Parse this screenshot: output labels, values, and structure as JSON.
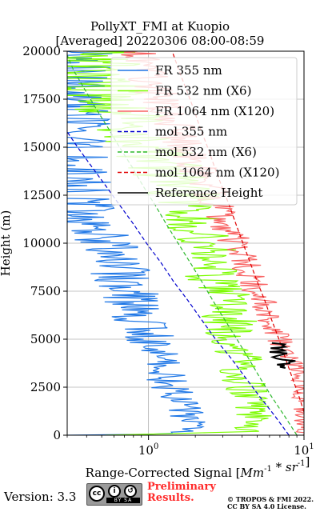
{
  "figure": {
    "title_line1": "PollyXT_FMI at Kuopio",
    "title_line2": "[Averaged] 20220306 08:00-08:59",
    "version": "Version: 3.3",
    "preliminary_line1": "Preliminary",
    "preliminary_line2": "Results.",
    "copyright_line1": "© TROPOS & FMI 2022.",
    "copyright_line2": "CC BY SA 4.0 License.",
    "cc_badge_text": "BY SA"
  },
  "chart_data": {
    "type": "line",
    "xscale": "log",
    "xlim": [
      0.3,
      10
    ],
    "ylim": [
      0,
      20000
    ],
    "xlabel": "Range-Corrected Signal [Mm^-1 * sr^-1]",
    "ylabel": "Height (m)",
    "x_major_ticks": [
      1,
      10
    ],
    "x_tick_labels": [
      "10^0",
      "10^1"
    ],
    "y_ticks": [
      0,
      2500,
      5000,
      7500,
      10000,
      12500,
      15000,
      17500,
      20000
    ],
    "y_tick_labels": [
      "0",
      "2500",
      "5000",
      "7500",
      "10000",
      "12500",
      "15000",
      "17500",
      "20000"
    ],
    "grid": true,
    "legend_position": "top-right",
    "series": [
      {
        "name": "FR 355 nm",
        "color": "#1f77e6",
        "style": "solid",
        "noise": 0.12,
        "points": [
          [
            0.4,
            0
          ],
          [
            1.6,
            100
          ],
          [
            2.0,
            500
          ],
          [
            1.8,
            1000
          ],
          [
            1.5,
            2000
          ],
          [
            1.3,
            3000
          ],
          [
            1.15,
            4000
          ],
          [
            1.0,
            5000
          ],
          [
            0.9,
            6000
          ],
          [
            0.8,
            7000
          ],
          [
            0.7,
            8000
          ],
          [
            0.6,
            9000
          ],
          [
            0.5,
            10000
          ],
          [
            0.43,
            11000
          ],
          [
            0.37,
            12000
          ],
          [
            0.33,
            13000
          ],
          [
            0.3,
            14000
          ],
          [
            0.3,
            20000
          ]
        ]
      },
      {
        "name": "FR 532 nm (X6)",
        "color": "#7cfc00",
        "style": "solid",
        "noise": 0.12,
        "points": [
          [
            0.5,
            0
          ],
          [
            4.5,
            200
          ],
          [
            5.0,
            700
          ],
          [
            4.6,
            1500
          ],
          [
            4.2,
            2500
          ],
          [
            3.8,
            4000
          ],
          [
            3.3,
            6000
          ],
          [
            2.9,
            7500
          ],
          [
            2.5,
            9000
          ],
          [
            2.2,
            10500
          ],
          [
            1.8,
            12000
          ],
          [
            1.4,
            13500
          ],
          [
            1.0,
            15000
          ],
          [
            0.7,
            16500
          ],
          [
            0.5,
            18000
          ],
          [
            0.4,
            20000
          ]
        ]
      },
      {
        "name": "FR 1064 nm (X120)",
        "color": "#f86464",
        "style": "solid",
        "noise": 0.06,
        "points": [
          [
            10,
            0
          ],
          [
            10,
            1000
          ],
          [
            9.8,
            2500
          ],
          [
            8.5,
            3500
          ],
          [
            7.5,
            4500
          ],
          [
            6.5,
            5500
          ],
          [
            5.8,
            6500
          ],
          [
            5.0,
            7500
          ],
          [
            4.4,
            8500
          ],
          [
            3.9,
            9500
          ],
          [
            3.4,
            10500
          ],
          [
            3.0,
            11500
          ],
          [
            2.6,
            12500
          ],
          [
            2.2,
            13500
          ],
          [
            1.9,
            14500
          ],
          [
            1.6,
            15500
          ],
          [
            1.4,
            16500
          ],
          [
            1.2,
            17500
          ],
          [
            1.0,
            18500
          ],
          [
            0.9,
            19500
          ],
          [
            0.85,
            20000
          ]
        ]
      },
      {
        "name": "mol 355 nm",
        "color": "#0000cd",
        "style": "dashed",
        "noise": 0,
        "points": [
          [
            8.0,
            0
          ],
          [
            6.5,
            1000
          ],
          [
            5.2,
            2000
          ],
          [
            4.2,
            3000
          ],
          [
            3.4,
            4000
          ],
          [
            2.7,
            5000
          ],
          [
            2.2,
            6000
          ],
          [
            1.8,
            7000
          ],
          [
            1.45,
            8000
          ],
          [
            1.2,
            9000
          ],
          [
            0.97,
            10000
          ],
          [
            0.8,
            11000
          ],
          [
            0.65,
            12000
          ],
          [
            0.53,
            13000
          ],
          [
            0.43,
            14000
          ],
          [
            0.35,
            15000
          ],
          [
            0.3,
            15800
          ]
        ]
      },
      {
        "name": "mol 532 nm (X6)",
        "color": "#2eb82e",
        "style": "dashed",
        "noise": 0,
        "points": [
          [
            9.0,
            0
          ],
          [
            7.5,
            1000
          ],
          [
            6.2,
            2000
          ],
          [
            5.2,
            3000
          ],
          [
            4.4,
            4000
          ],
          [
            3.7,
            5000
          ],
          [
            3.1,
            6000
          ],
          [
            2.6,
            7000
          ],
          [
            2.2,
            8000
          ],
          [
            1.85,
            9000
          ],
          [
            1.55,
            10000
          ],
          [
            1.3,
            11000
          ],
          [
            1.1,
            12000
          ],
          [
            0.92,
            13000
          ],
          [
            0.78,
            14000
          ],
          [
            0.65,
            15000
          ],
          [
            0.55,
            16000
          ],
          [
            0.46,
            17000
          ],
          [
            0.39,
            18000
          ],
          [
            0.33,
            19000
          ],
          [
            0.3,
            19800
          ]
        ]
      },
      {
        "name": "mol 1064 nm (X120)",
        "color": "#e00000",
        "style": "dashed",
        "noise": 0,
        "points": [
          [
            10,
            1200
          ],
          [
            9.3,
            2000
          ],
          [
            8.4,
            3000
          ],
          [
            7.6,
            4000
          ],
          [
            6.9,
            5000
          ],
          [
            6.2,
            6000
          ],
          [
            5.6,
            7000
          ],
          [
            5.0,
            8000
          ],
          [
            4.5,
            9000
          ],
          [
            4.05,
            10000
          ],
          [
            3.65,
            11000
          ],
          [
            3.3,
            12000
          ],
          [
            2.95,
            13000
          ],
          [
            2.65,
            14000
          ],
          [
            2.4,
            15000
          ],
          [
            2.15,
            16000
          ],
          [
            1.95,
            17000
          ],
          [
            1.75,
            18000
          ],
          [
            1.57,
            19000
          ],
          [
            1.42,
            20000
          ]
        ]
      },
      {
        "name": "Reference Height",
        "color": "#000000",
        "style": "solid",
        "noise": 0.05,
        "points": [
          [
            6.5,
            4800
          ],
          [
            7.0,
            4600
          ],
          [
            6.8,
            4400
          ],
          [
            7.5,
            4200
          ],
          [
            7.2,
            4000
          ],
          [
            7.8,
            3800
          ],
          [
            7.6,
            3500
          ]
        ]
      }
    ]
  }
}
